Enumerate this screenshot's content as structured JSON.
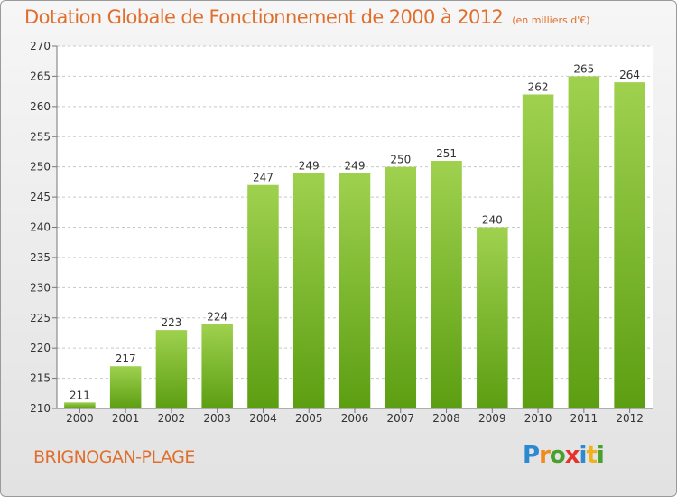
{
  "title": "Dotation Globale de Fonctionnement de 2000 à 2012",
  "subtitle": "(en milliers d'€)",
  "commune": "BRIGNOGAN-PLAGE",
  "logo": {
    "text": "Proxiti",
    "letters": [
      {
        "char": "P",
        "color": "#2e8ad0"
      },
      {
        "char": "r",
        "color": "#f08a1c"
      },
      {
        "char": "o",
        "color": "#4aa02c"
      },
      {
        "char": "x",
        "color": "#e5322d"
      },
      {
        "char": "i",
        "color": "#2e8ad0"
      },
      {
        "char": "t",
        "color": "#f0b21c"
      },
      {
        "char": "i",
        "color": "#4aa02c"
      }
    ]
  },
  "colors": {
    "accent": "#e06f2d",
    "bar_top": "#9fd14f",
    "bar_bottom": "#5c9e12",
    "grid": "#c8c8c8"
  },
  "chart_data": {
    "type": "bar",
    "categories": [
      "2000",
      "2001",
      "2002",
      "2003",
      "2004",
      "2005",
      "2006",
      "2007",
      "2008",
      "2009",
      "2010",
      "2011",
      "2012"
    ],
    "values": [
      211,
      217,
      223,
      224,
      247,
      249,
      249,
      250,
      251,
      240,
      262,
      265,
      264
    ],
    "title": "Dotation Globale de Fonctionnement de 2000 à 2012",
    "ylabel": "",
    "xlabel": "",
    "ylim": [
      210,
      270
    ],
    "yticks": [
      210,
      215,
      220,
      225,
      230,
      235,
      240,
      245,
      250,
      255,
      260,
      265,
      270
    ],
    "grid": true
  }
}
